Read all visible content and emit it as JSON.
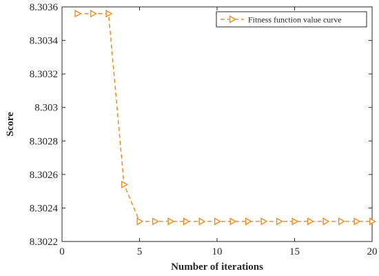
{
  "chart_data": {
    "type": "line",
    "title": "",
    "xlabel": "Number of iterations",
    "ylabel": "Score",
    "xlim": [
      0,
      20
    ],
    "ylim": [
      8.3022,
      8.3036
    ],
    "xticks": [
      0,
      5,
      10,
      15,
      20
    ],
    "xtick_labels": [
      "0",
      "5",
      "10",
      "15",
      "20"
    ],
    "yticks": [
      8.3022,
      8.3024,
      8.3026,
      8.3028,
      8.303,
      8.3032,
      8.3034,
      8.3036
    ],
    "ytick_labels": [
      "8.3022",
      "8.3024",
      "8.3026",
      "8.3028",
      "8.303",
      "8.3032",
      "8.3034",
      "8.3036"
    ],
    "grid": false,
    "legend": {
      "position": "top-right",
      "entries": [
        "Fitness function value curve"
      ]
    },
    "series": [
      {
        "name": "Fitness function value curve",
        "color": "#f28a1e",
        "marker": "triangle-right",
        "line_style": "dashed",
        "x": [
          1,
          2,
          3,
          4,
          5,
          6,
          7,
          8,
          9,
          10,
          11,
          12,
          13,
          14,
          15,
          16,
          17,
          18,
          19,
          20
        ],
        "y": [
          8.30356,
          8.30356,
          8.30356,
          8.30254,
          8.30232,
          8.30232,
          8.30232,
          8.30232,
          8.30232,
          8.30232,
          8.30232,
          8.30232,
          8.30232,
          8.30232,
          8.30232,
          8.30232,
          8.30232,
          8.30232,
          8.30232,
          8.30232
        ]
      }
    ]
  }
}
